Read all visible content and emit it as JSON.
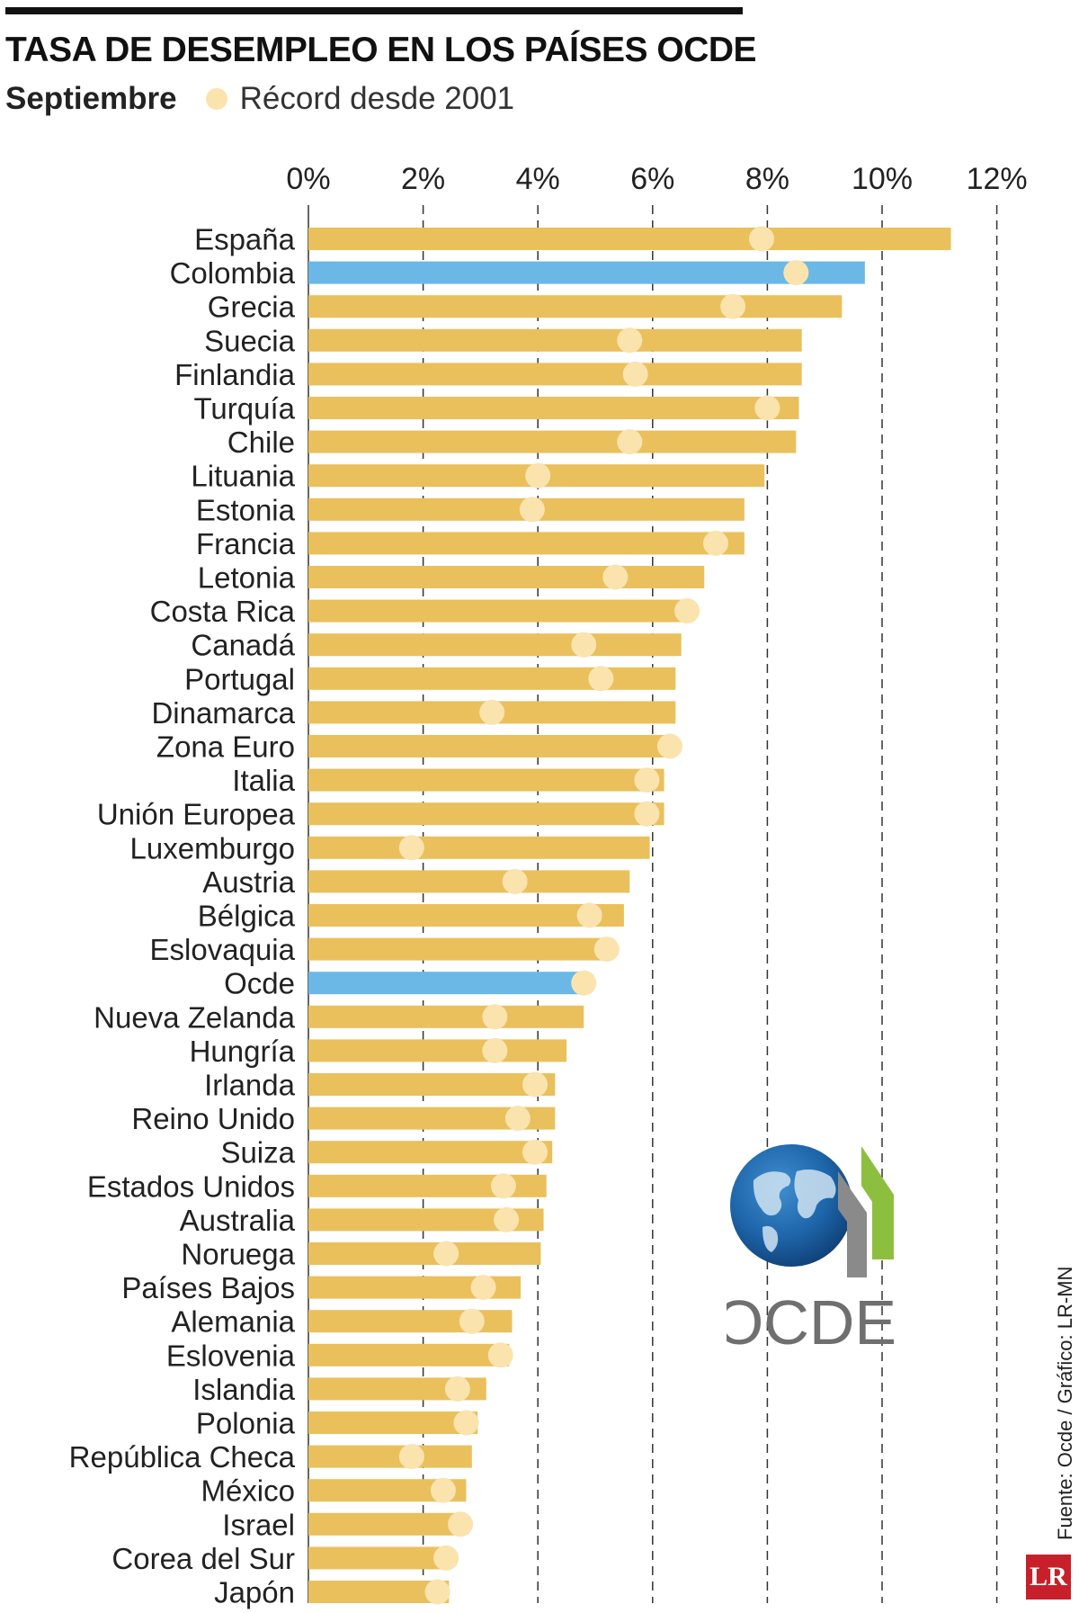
{
  "header": {
    "title": "TASA DE DESEMPLEO EN LOS PAÍSES OCDE",
    "subtitle": "Septiembre",
    "legend_label": "Récord desde 2001"
  },
  "colors": {
    "bar": "#EAC05C",
    "highlight_bar": "#6BB8E6",
    "record_dot": "#FBE3AE",
    "grid": "#333333",
    "text": "#222222"
  },
  "chart_data": {
    "type": "bar",
    "orientation": "horizontal",
    "title": "TASA DE DESEMPLEO EN LOS PAÍSES OCDE",
    "subtitle": "Septiembre",
    "xlim": [
      0,
      12
    ],
    "x_ticks": [
      "0%",
      "2%",
      "4%",
      "6%",
      "8%",
      "10%",
      "12%"
    ],
    "x_tick_values": [
      0,
      2,
      4,
      6,
      8,
      10,
      12
    ],
    "grid": "vertical dashed lines",
    "legend": "top-left",
    "categories": [
      "España",
      "Colombia",
      "Grecia",
      "Suecia",
      "Finlandia",
      "Turquía",
      "Chile",
      "Lituania",
      "Estonia",
      "Francia",
      "Letonia",
      "Costa Rica",
      "Canadá",
      "Portugal",
      "Dinamarca",
      "Zona Euro",
      "Italia",
      "Unión Europea",
      "Luxemburgo",
      "Austria",
      "Bélgica",
      "Eslovaquia",
      "Ocde",
      "Nueva Zelanda",
      "Hungría",
      "Irlanda",
      "Reino Unido",
      "Suiza",
      "Estados Unidos",
      "Australia",
      "Noruega",
      "Países Bajos",
      "Alemania",
      "Eslovenia",
      "Islandia",
      "Polonia",
      "República Checa",
      "México",
      "Israel",
      "Corea del Sur",
      "Japón"
    ],
    "highlighted": [
      "Colombia",
      "Ocde"
    ],
    "series": [
      {
        "name": "Septiembre",
        "values": [
          11.2,
          9.7,
          9.3,
          8.6,
          8.6,
          8.55,
          8.5,
          7.95,
          7.6,
          7.6,
          6.9,
          6.5,
          6.5,
          6.4,
          6.4,
          6.3,
          6.2,
          6.2,
          5.95,
          5.6,
          5.5,
          5.3,
          4.85,
          4.8,
          4.5,
          4.3,
          4.3,
          4.25,
          4.15,
          4.1,
          4.05,
          3.7,
          3.55,
          3.5,
          3.1,
          2.95,
          2.85,
          2.75,
          2.6,
          2.5,
          2.45
        ]
      },
      {
        "name": "Récord desde 2001",
        "values": [
          7.9,
          8.5,
          7.4,
          5.6,
          5.7,
          8.0,
          5.6,
          4.0,
          3.9,
          7.1,
          5.35,
          6.6,
          4.8,
          5.1,
          3.2,
          6.3,
          5.9,
          5.9,
          1.8,
          3.6,
          4.9,
          5.2,
          4.8,
          3.25,
          3.25,
          3.95,
          3.65,
          3.95,
          3.4,
          3.45,
          2.4,
          3.05,
          2.85,
          3.35,
          2.6,
          2.75,
          1.8,
          2.35,
          2.65,
          2.4,
          2.25
        ]
      }
    ]
  },
  "source": "Fuente: Ocde / Gráfico: LR-MN",
  "logo": {
    "ocde_text": "OCDE",
    "lr_text": "LR"
  }
}
